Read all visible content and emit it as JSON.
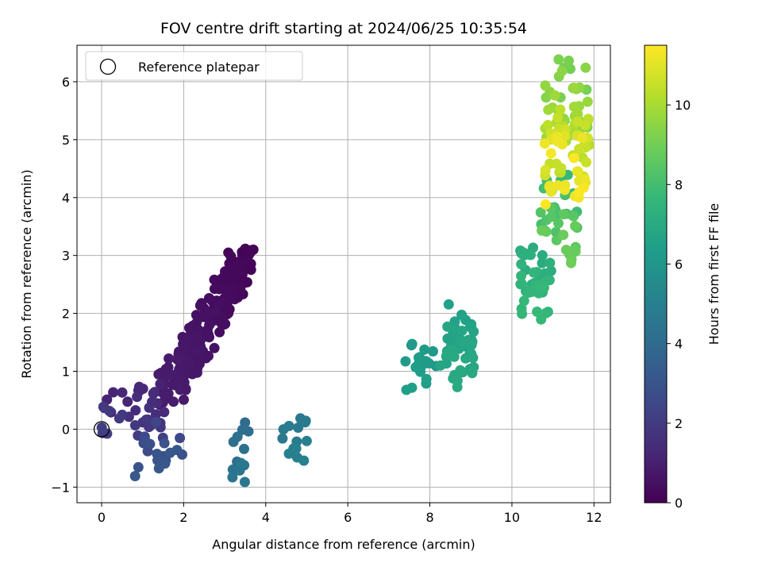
{
  "chart_data": {
    "type": "scatter",
    "title": "FOV centre drift starting at 2024/06/25 10:35:54",
    "xlabel": "Angular distance from reference (arcmin)",
    "ylabel": "Rotation from reference (arcmin)",
    "xlim": [
      -0.6,
      12.4
    ],
    "ylim": [
      -1.27,
      6.63
    ],
    "xticks": [
      0,
      2,
      4,
      6,
      8,
      10,
      12
    ],
    "yticks": [
      -1,
      0,
      1,
      2,
      3,
      4,
      5,
      6
    ],
    "grid": true,
    "legend": {
      "placement": "upper-left",
      "entries": [
        "Reference platepar"
      ]
    },
    "reference_point": {
      "x": 0,
      "y": 0
    },
    "colorbar": {
      "label": "Hours from first FF file",
      "range": [
        0,
        11.5
      ],
      "ticks": [
        0,
        2,
        4,
        6,
        8,
        10
      ],
      "colormap": "viridis",
      "colors": [
        "#440154",
        "#482878",
        "#3e4989",
        "#31688e",
        "#26828e",
        "#1f9e89",
        "#35b779",
        "#6ece58",
        "#b5de2b",
        "#fde725"
      ]
    },
    "clusters": [
      {
        "hours": [
          0.1,
          0.9
        ],
        "x_range": [
          1.6,
          3.5
        ],
        "y_range": [
          0.6,
          2.9
        ],
        "count": 220,
        "trend": "diagonal"
      },
      {
        "hours": [
          1.0,
          2.2
        ],
        "x_range": [
          0.0,
          1.7
        ],
        "y_range": [
          -0.1,
          0.8
        ],
        "count": 40
      },
      {
        "hours": [
          2.3,
          3.2
        ],
        "x_range": [
          0.8,
          2.1
        ],
        "y_range": [
          -0.75,
          0.15
        ],
        "count": 20
      },
      {
        "hours": [
          4.0,
          4.6
        ],
        "x_range": [
          3.1,
          3.6
        ],
        "y_range": [
          -0.9,
          0.1
        ],
        "count": 14
      },
      {
        "hours": [
          4.6,
          5.1
        ],
        "x_range": [
          4.4,
          5.0
        ],
        "y_range": [
          -0.6,
          0.25
        ],
        "count": 14
      },
      {
        "hours": [
          6.1,
          6.5
        ],
        "x_range": [
          7.4,
          8.2
        ],
        "y_range": [
          0.6,
          1.55
        ],
        "count": 20
      },
      {
        "hours": [
          6.5,
          7.0
        ],
        "x_range": [
          8.2,
          9.1
        ],
        "y_range": [
          0.8,
          2.1
        ],
        "count": 55
      },
      {
        "hours": [
          7.0,
          7.7
        ],
        "x_range": [
          10.2,
          11.0
        ],
        "y_range": [
          2.0,
          3.3
        ],
        "count": 45
      },
      {
        "hours": [
          7.7,
          9.0
        ],
        "x_range": [
          10.7,
          11.6
        ],
        "y_range": [
          2.9,
          4.3
        ],
        "count": 35
      },
      {
        "hours": [
          9.0,
          11.5
        ],
        "x_range": [
          10.8,
          11.9
        ],
        "y_range": [
          3.9,
          6.3
        ],
        "count": 100
      }
    ]
  }
}
